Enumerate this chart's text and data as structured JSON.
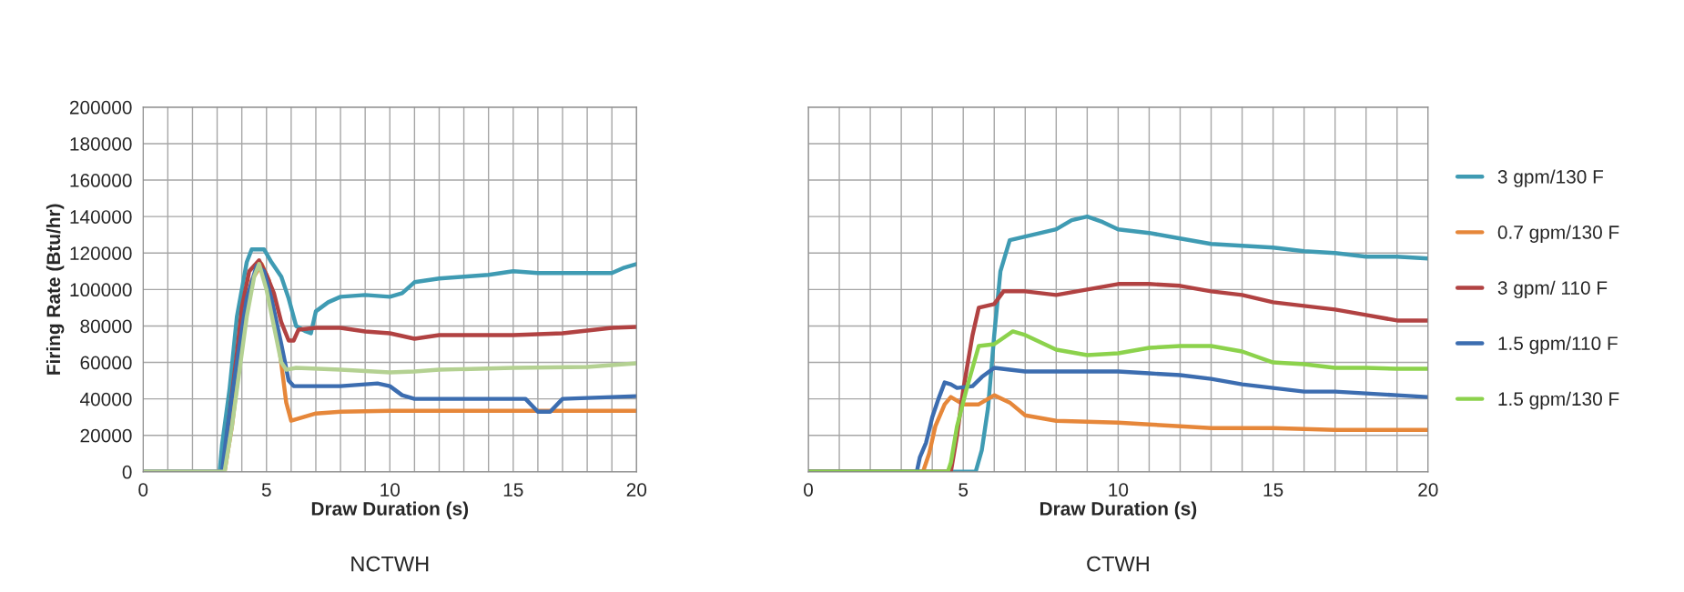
{
  "chart_data": [
    {
      "type": "line",
      "xlabel": "Draw Duration (s)",
      "ylabel": "Firing Rate (Btu/hr)",
      "annotations": [
        "NCTWH"
      ],
      "grid": true,
      "legend": false,
      "xlim": [
        0,
        20
      ],
      "xticks": [
        0,
        {
          "value": 1,
          "label": null
        },
        {
          "value": 2,
          "label": null
        },
        {
          "value": 3,
          "label": null
        },
        {
          "value": 4,
          "label": null
        },
        5,
        {
          "value": 6,
          "label": null
        },
        {
          "value": 7,
          "label": null
        },
        {
          "value": 8,
          "label": null
        },
        {
          "value": 9,
          "label": null
        },
        10,
        {
          "value": 11,
          "label": null
        },
        {
          "value": 12,
          "label": null
        },
        {
          "value": 13,
          "label": null
        },
        {
          "value": 14,
          "label": null
        },
        15,
        {
          "value": 16,
          "label": null
        },
        {
          "value": 17,
          "label": null
        },
        {
          "value": 18,
          "label": null
        },
        {
          "value": 19,
          "label": null
        },
        20
      ],
      "ylim": [
        0,
        200000
      ],
      "yticks": [
        0,
        20000,
        40000,
        60000,
        80000,
        100000,
        120000,
        140000,
        160000,
        180000,
        200000
      ],
      "series": [
        {
          "color": "#3f9bb3",
          "x": [
            0,
            3.1,
            3.2,
            3.5,
            3.8,
            4.0,
            4.2,
            4.4,
            4.9,
            5.2,
            5.6,
            5.9,
            6.2,
            6.6,
            6.8,
            7.0,
            7.5,
            8,
            9,
            10,
            10.5,
            11,
            12,
            13,
            14,
            15,
            16,
            17,
            18,
            19,
            19.5,
            20
          ],
          "values": [
            0,
            0,
            15000,
            45000,
            85000,
            100000,
            115000,
            122000,
            122000,
            115000,
            107000,
            95000,
            80000,
            77000,
            76000,
            88000,
            93000,
            96000,
            97000,
            96000,
            98000,
            104000,
            106000,
            107000,
            108000,
            110000,
            109000,
            109000,
            109000,
            109000,
            112000,
            114000
          ]
        },
        {
          "color": "#e6873a",
          "x": [
            0,
            3.3,
            3.6,
            4.0,
            4.4,
            4.8,
            5.1,
            5.5,
            5.8,
            6.0,
            6.5,
            7,
            8,
            10,
            20
          ],
          "values": [
            0,
            0,
            25000,
            70000,
            105000,
            114000,
            105000,
            70000,
            38000,
            28000,
            30000,
            32000,
            33000,
            33500,
            33500
          ]
        },
        {
          "color": "#b14242",
          "x": [
            3.4,
            3.8,
            4.0,
            4.3,
            4.7,
            5.0,
            5.3,
            5.6,
            5.9,
            6.1,
            6.3,
            7,
            8,
            9,
            10,
            11,
            12,
            14,
            15,
            17,
            19,
            20
          ],
          "values": [
            20000,
            65000,
            90000,
            110000,
            116000,
            108000,
            98000,
            82000,
            72000,
            72000,
            78000,
            79000,
            79000,
            77000,
            76000,
            73000,
            75000,
            75000,
            75000,
            76000,
            79000,
            79500
          ]
        },
        {
          "color": "#3c6db0",
          "x": [
            0,
            3.2,
            3.4,
            3.8,
            4.2,
            4.6,
            4.9,
            5.2,
            5.6,
            5.9,
            6.1,
            8,
            9.5,
            10,
            10.5,
            11,
            13,
            15,
            15.5,
            16,
            16.5,
            17,
            20
          ],
          "values": [
            0,
            0,
            22000,
            60000,
            95000,
            113000,
            110000,
            95000,
            70000,
            50000,
            47000,
            47000,
            48500,
            47000,
            42000,
            40000,
            40000,
            40000,
            40000,
            33000,
            33000,
            40000,
            41500
          ]
        },
        {
          "color": "#b4d192",
          "x": [
            0,
            3.3,
            3.6,
            3.9,
            4.2,
            4.5,
            4.7,
            5.0,
            5.3,
            5.6,
            5.8,
            6.2,
            8,
            10,
            11,
            12,
            15,
            18,
            20
          ],
          "values": [
            0,
            0,
            25000,
            55000,
            85000,
            107000,
            114000,
            100000,
            80000,
            60000,
            56000,
            57000,
            56000,
            54500,
            55000,
            56000,
            57000,
            57500,
            59500
          ]
        }
      ]
    },
    {
      "type": "line",
      "xlabel": "Draw Duration (s)",
      "annotations": [
        "CTWH"
      ],
      "grid": true,
      "legend": "right",
      "tick_labels": "x",
      "xlim": [
        0,
        20
      ],
      "xticks": [
        0,
        {
          "value": 1,
          "label": null
        },
        {
          "value": 2,
          "label": null
        },
        {
          "value": 3,
          "label": null
        },
        {
          "value": 4,
          "label": null
        },
        5,
        {
          "value": 6,
          "label": null
        },
        {
          "value": 7,
          "label": null
        },
        {
          "value": 8,
          "label": null
        },
        {
          "value": 9,
          "label": null
        },
        10,
        {
          "value": 11,
          "label": null
        },
        {
          "value": 12,
          "label": null
        },
        {
          "value": 13,
          "label": null
        },
        {
          "value": 14,
          "label": null
        },
        15,
        {
          "value": 16,
          "label": null
        },
        {
          "value": 17,
          "label": null
        },
        {
          "value": 18,
          "label": null
        },
        {
          "value": 19,
          "label": null
        },
        20
      ],
      "ylim": [
        0,
        200000
      ],
      "yticks": [
        0,
        20000,
        40000,
        60000,
        80000,
        100000,
        120000,
        140000,
        160000,
        180000,
        200000
      ],
      "series": [
        {
          "name": "3 gpm/130 F",
          "color": "#3f9bb3",
          "x": [
            0,
            5.4,
            5.6,
            5.8,
            6.0,
            6.2,
            6.5,
            7,
            8,
            8.5,
            9,
            9.5,
            10,
            11,
            12,
            13,
            14,
            15,
            16,
            17,
            18,
            19,
            20
          ],
          "values": [
            0,
            0,
            12000,
            35000,
            75000,
            110000,
            127000,
            129000,
            133000,
            138000,
            140000,
            137000,
            133000,
            131000,
            128000,
            125000,
            124000,
            123000,
            121000,
            120000,
            118000,
            118000,
            117000
          ]
        },
        {
          "name": "0.7 gpm/130 F",
          "color": "#e6873a",
          "x": [
            0,
            3.7,
            3.9,
            4.1,
            4.4,
            4.6,
            5,
            5.5,
            6.0,
            6.5,
            7,
            8,
            9,
            10,
            11,
            12,
            13,
            15,
            17,
            18,
            20
          ],
          "values": [
            0,
            0,
            10000,
            25000,
            37000,
            41000,
            37000,
            37000,
            42000,
            38000,
            31000,
            28000,
            27500,
            27000,
            26000,
            25000,
            24000,
            24000,
            23000,
            23000,
            23000
          ]
        },
        {
          "name": "3 gpm/ 110 F",
          "color": "#b14242",
          "x": [
            0,
            4.6,
            4.8,
            5.0,
            5.3,
            5.5,
            6.0,
            6.3,
            7,
            8,
            9,
            10,
            11,
            12,
            13,
            14,
            15,
            16,
            17,
            18,
            19,
            20
          ],
          "values": [
            0,
            0,
            20000,
            45000,
            75000,
            90000,
            92000,
            99000,
            99000,
            97000,
            100000,
            103000,
            103000,
            102000,
            99000,
            97000,
            93000,
            91000,
            89000,
            86000,
            83000,
            83000
          ]
        },
        {
          "name": "1.5 gpm/110 F",
          "color": "#3c6db0",
          "x": [
            0,
            3.5,
            3.6,
            3.8,
            4.0,
            4.2,
            4.4,
            4.6,
            4.8,
            5.3,
            5.6,
            6,
            7,
            8,
            9,
            10,
            11,
            12,
            13,
            14,
            15,
            16,
            17,
            18,
            19,
            20
          ],
          "values": [
            0,
            0,
            8000,
            16000,
            30000,
            40000,
            49000,
            48000,
            46000,
            47000,
            52000,
            57000,
            55000,
            55000,
            55000,
            55000,
            54000,
            53000,
            51000,
            48000,
            46000,
            44000,
            44000,
            43000,
            42000,
            41000
          ]
        },
        {
          "name": "1.5 gpm/130 F",
          "color": "#8cd24c",
          "x": [
            0,
            4.5,
            4.6,
            4.8,
            5.1,
            5.5,
            6.0,
            6.6,
            7,
            8,
            9,
            10,
            11,
            12,
            13,
            14,
            15,
            16,
            17,
            18,
            19,
            20
          ],
          "values": [
            0,
            0,
            5000,
            25000,
            45000,
            69000,
            70000,
            77000,
            75000,
            67000,
            64000,
            65000,
            68000,
            69000,
            69000,
            66000,
            60000,
            59000,
            57000,
            57000,
            56500,
            56500
          ]
        }
      ]
    }
  ]
}
